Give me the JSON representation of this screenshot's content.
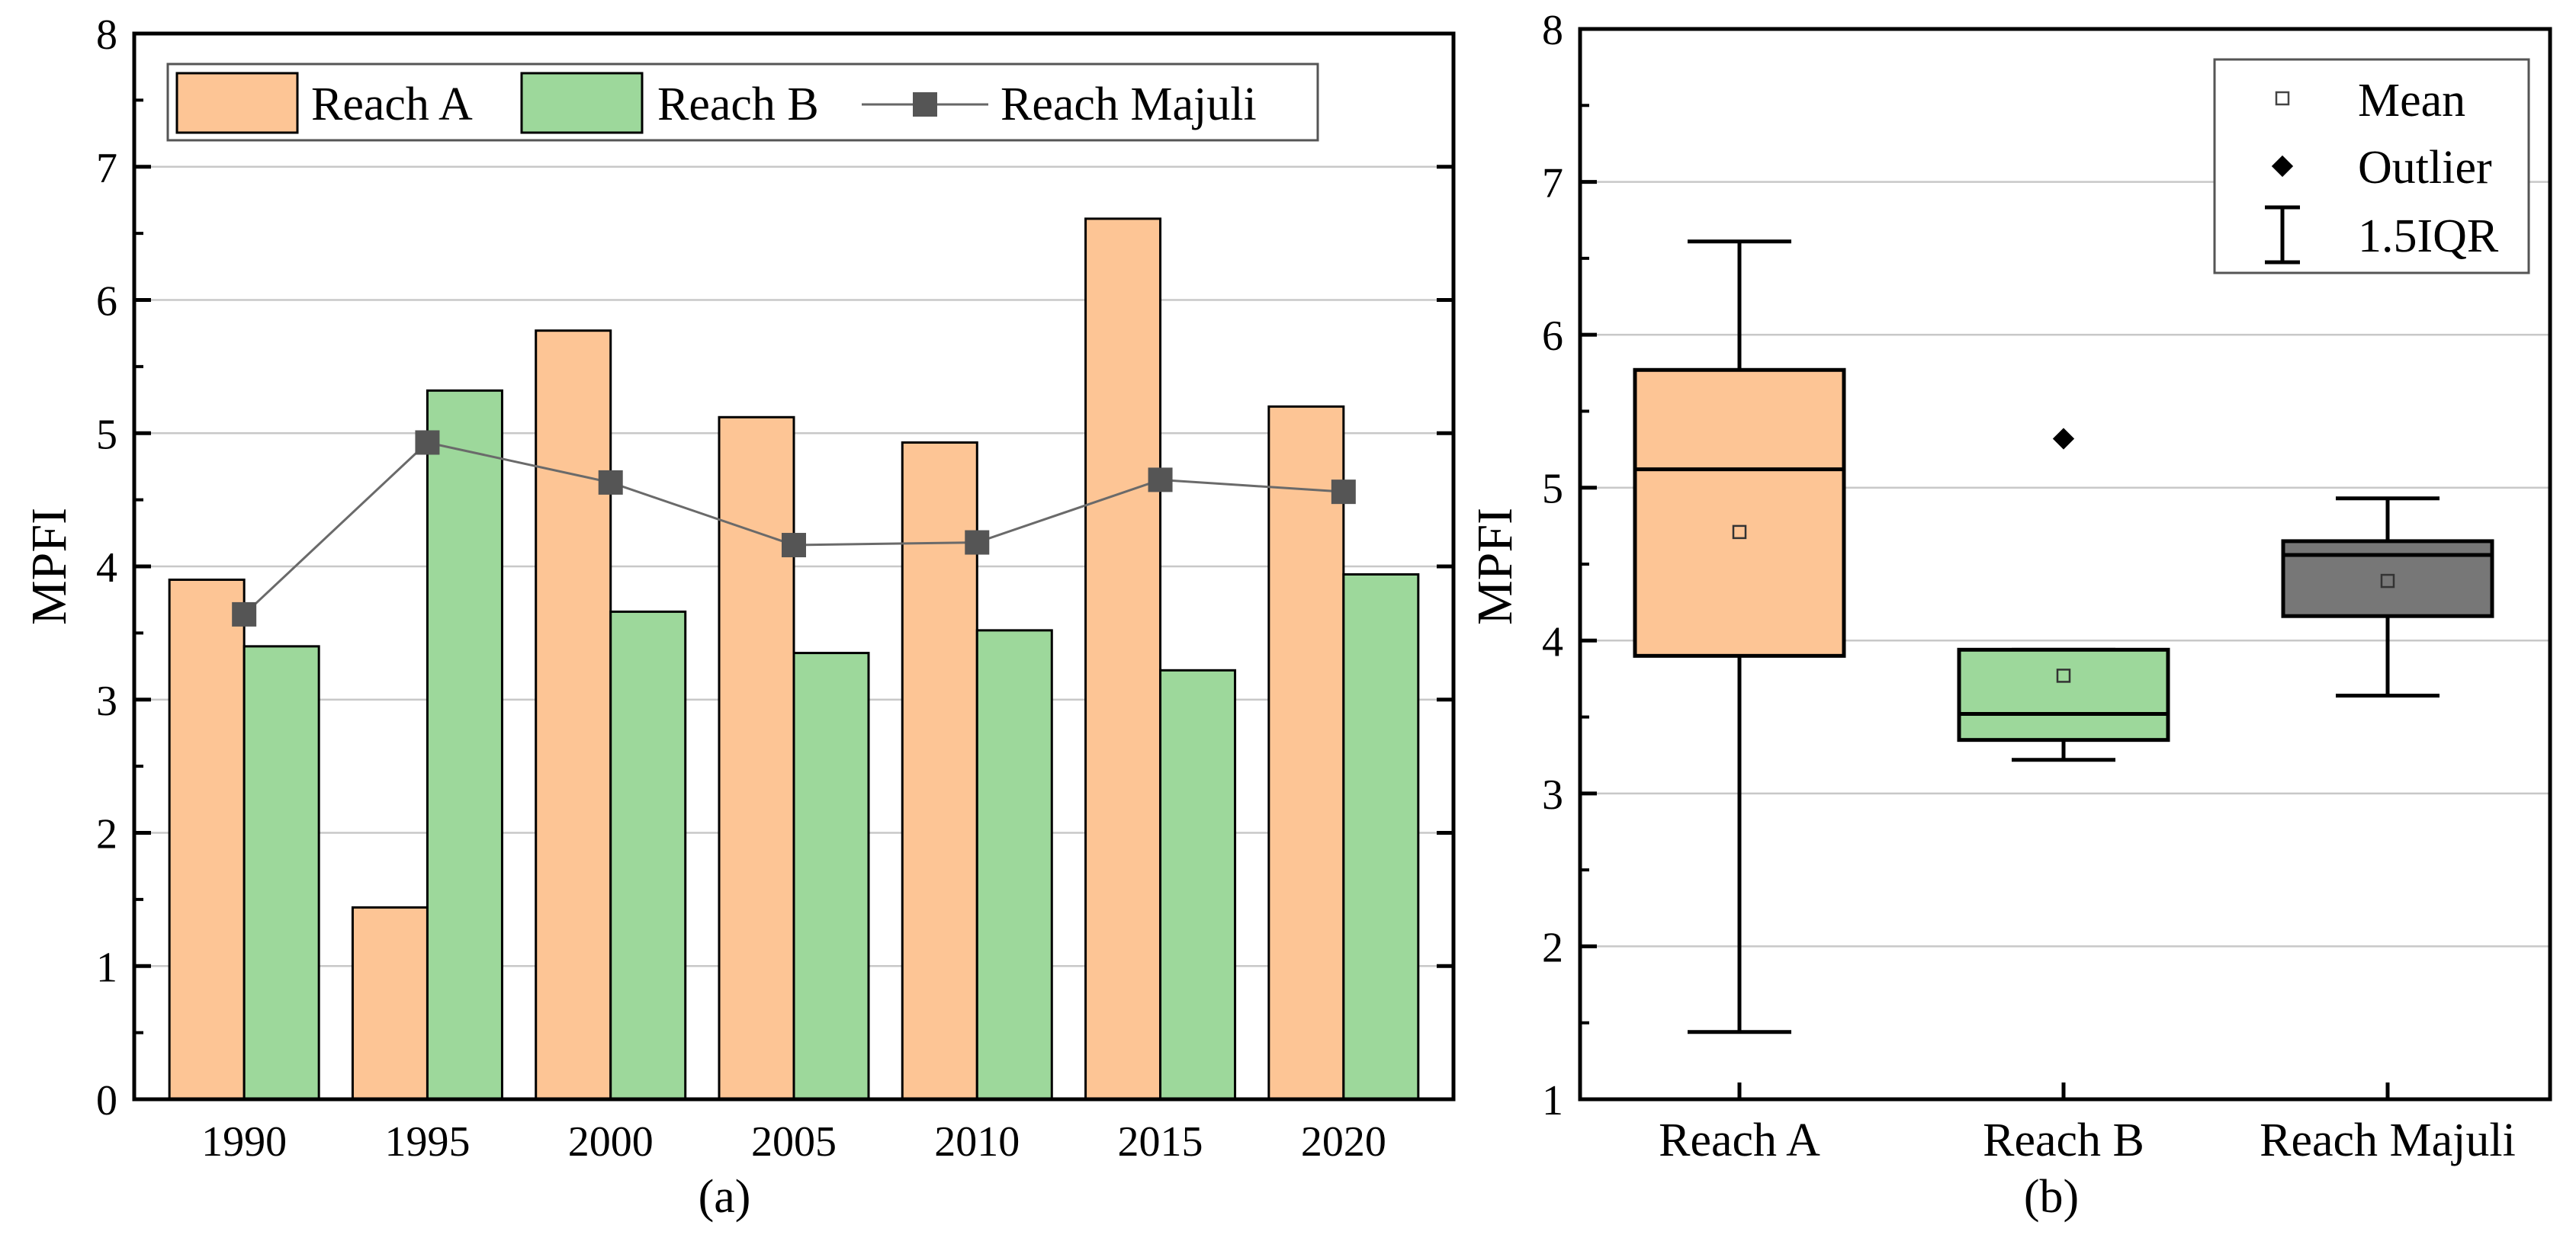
{
  "colors": {
    "reach_a": "#FDC595",
    "reach_b": "#9DD89B",
    "majuli": "#555555",
    "majuli_box": "#777777",
    "grid": "#c8c8c8"
  },
  "chart_data": [
    {
      "type": "bar",
      "panel_label": "(a)",
      "ylabel": "MPFI",
      "xlabel": "",
      "ylim": [
        0,
        8
      ],
      "yticks": [
        "0",
        "1",
        "2",
        "3",
        "4",
        "5",
        "6",
        "7",
        "8"
      ],
      "grid": true,
      "legend_position": "top-left",
      "categories": [
        "1990",
        "1995",
        "2000",
        "2005",
        "2010",
        "2015",
        "2020"
      ],
      "series": [
        {
          "name": "Reach A",
          "type": "bar",
          "values": [
            3.9,
            1.44,
            5.77,
            5.12,
            4.93,
            6.61,
            5.2
          ]
        },
        {
          "name": "Reach B",
          "type": "bar",
          "values": [
            3.4,
            5.32,
            3.66,
            3.35,
            3.52,
            3.22,
            3.94
          ]
        },
        {
          "name": "Reach Majuli",
          "type": "line",
          "values": [
            3.64,
            4.93,
            4.63,
            4.16,
            4.18,
            4.65,
            4.56
          ]
        }
      ]
    },
    {
      "type": "box",
      "panel_label": "(b)",
      "ylabel": "MPFI",
      "xlabel": "",
      "ylim": [
        1,
        8
      ],
      "yticks": [
        "1",
        "2",
        "3",
        "4",
        "5",
        "6",
        "7",
        "8"
      ],
      "grid": true,
      "legend_position": "top-right",
      "legend": [
        "Mean",
        "Outlier",
        "1.5IQR"
      ],
      "categories": [
        "Reach A",
        "Reach B",
        "Reach Majuli"
      ],
      "boxes": [
        {
          "name": "Reach A",
          "whisker_low": 1.44,
          "q1": 3.9,
          "median": 5.12,
          "q3": 5.77,
          "whisker_high": 6.61,
          "mean": 4.71,
          "outliers": []
        },
        {
          "name": "Reach B",
          "whisker_low": 3.22,
          "q1": 3.35,
          "median": 3.52,
          "q3": 3.94,
          "whisker_high": 3.94,
          "mean": 3.77,
          "outliers": [
            5.32
          ]
        },
        {
          "name": "Reach Majuli",
          "whisker_low": 3.64,
          "q1": 4.16,
          "median": 4.56,
          "q3": 4.65,
          "whisker_high": 4.93,
          "mean": 4.39,
          "outliers": []
        }
      ]
    }
  ]
}
